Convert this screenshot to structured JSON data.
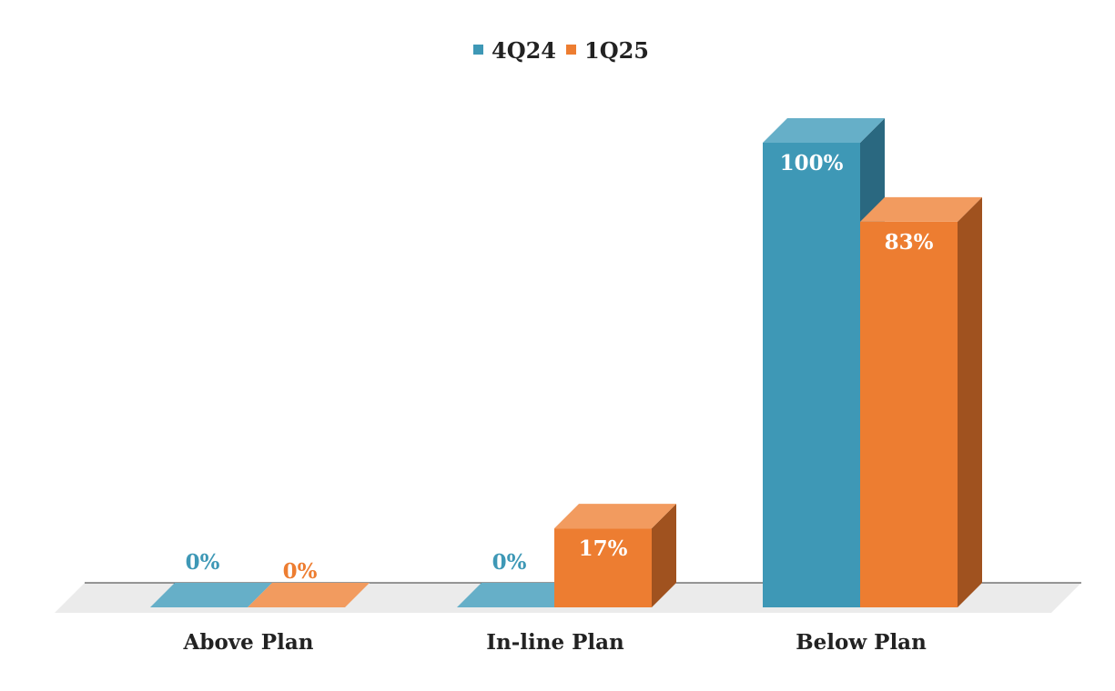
{
  "chart_data": {
    "type": "bar",
    "categories": [
      "Above Plan",
      "In-line Plan",
      "Below Plan"
    ],
    "series": [
      {
        "name": "4Q24",
        "values": [
          0,
          0,
          100
        ],
        "labels": [
          "0%",
          "0%",
          "100%"
        ],
        "color": "#3E98B6",
        "color_top": "#66AFC8",
        "color_side": "#2A6880"
      },
      {
        "name": "1Q25",
        "values": [
          0,
          17,
          83
        ],
        "labels": [
          "0%",
          "17%",
          "83%"
        ],
        "color": "#ED7D31",
        "color_top": "#F29B5F",
        "color_side": "#A0521F"
      }
    ],
    "ylim": [
      0,
      100
    ],
    "value_unit": "%",
    "legend_position": "top-center",
    "grid": false,
    "style": "3d-column"
  }
}
